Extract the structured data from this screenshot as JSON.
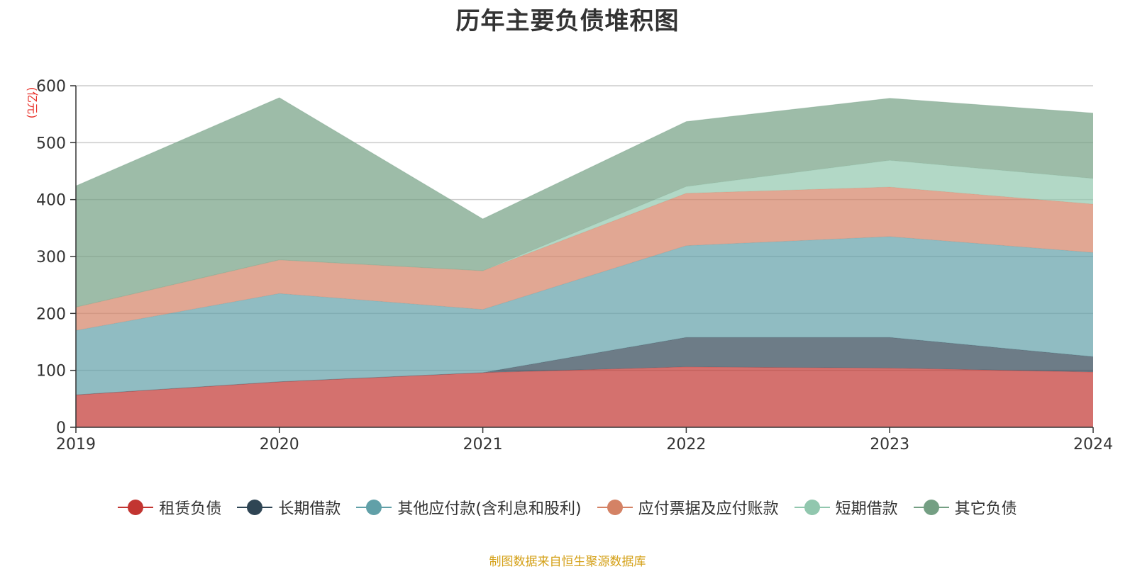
{
  "chart_data": {
    "type": "area",
    "stacked": true,
    "title": "历年主要负债堆积图",
    "ylabel": "(亿元)",
    "categories": [
      "2019",
      "2020",
      "2021",
      "2022",
      "2023",
      "2024"
    ],
    "ylim": [
      0,
      600
    ],
    "yticks": [
      0,
      100,
      200,
      300,
      400,
      500,
      600
    ],
    "grid": true,
    "legend_position": "bottom",
    "series": [
      {
        "name": "租赁负债",
        "color": "#c23531",
        "values": [
          57,
          80,
          96,
          106,
          104,
          97
        ]
      },
      {
        "name": "长期借款",
        "color": "#2f4554",
        "values": [
          0,
          0,
          0,
          52,
          54,
          27
        ]
      },
      {
        "name": "其他应付款(含利息和股利)",
        "color": "#61a0a8",
        "values": [
          113,
          155,
          111,
          161,
          177,
          183
        ]
      },
      {
        "name": "应付票据及应付账款",
        "color": "#d48265",
        "values": [
          41,
          59,
          68,
          92,
          87,
          85
        ]
      },
      {
        "name": "短期借款",
        "color": "#91c7ae",
        "values": [
          0,
          0,
          0,
          12,
          47,
          45
        ]
      },
      {
        "name": "其它负债",
        "color": "#749f83",
        "values": [
          213,
          285,
          91,
          114,
          109,
          115
        ]
      }
    ],
    "source": "制图数据来自恒生聚源数据库"
  }
}
